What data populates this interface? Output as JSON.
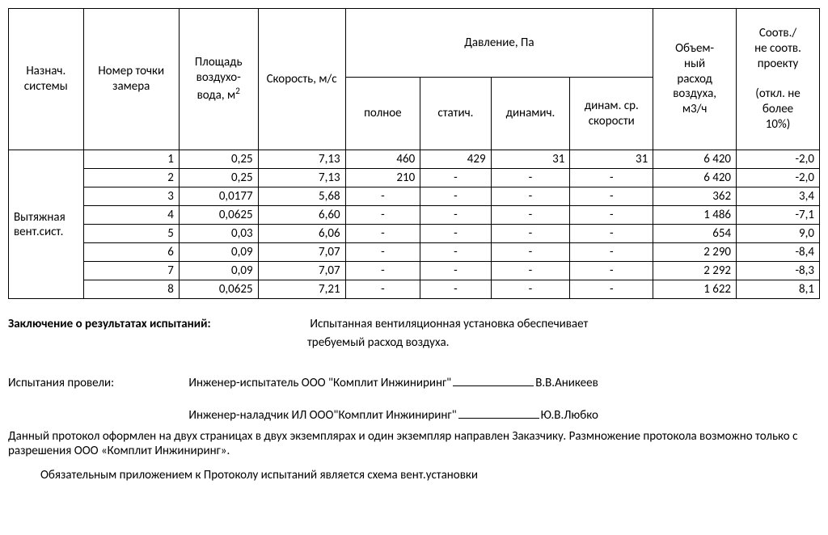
{
  "table": {
    "headers": {
      "system": "Назнач. системы",
      "point": "Номер точки замера",
      "area_l1": "Площадь",
      "area_l2": "воздухо-",
      "area_l3": "вода, м",
      "area_sup": "2",
      "velocity": "Скорость, м/с",
      "pressure_group": "Давление, Па",
      "pressure_full": "полное",
      "pressure_static": "статич.",
      "pressure_dynamic": "динамич.",
      "pressure_dyn_avg": "динам. ср. скорости",
      "flow_l1": "Объем-",
      "flow_l2": "ный",
      "flow_l3": "расход",
      "flow_l4": "воздуха,",
      "flow_l5": "м3/ч",
      "deviation_l1": "Соотв./",
      "deviation_l2": "не соотв.",
      "deviation_l3": "проекту",
      "deviation_l4": "(откл. не",
      "deviation_l5": "более",
      "deviation_l6": "10%)"
    },
    "system_label": "Вытяжная вент.сист.",
    "rows": [
      {
        "n": "1",
        "area": "0,25",
        "vel": "7,13",
        "p_full": "460",
        "p_stat": "429",
        "p_dyn": "31",
        "p_avg": "31",
        "flow": "6 420",
        "dev": "-2,0"
      },
      {
        "n": "2",
        "area": "0,25",
        "vel": "7,13",
        "p_full": "210",
        "p_stat": "-",
        "p_dyn": "-",
        "p_avg": "-",
        "flow": "6 420",
        "dev": "-2,0"
      },
      {
        "n": "3",
        "area": "0,0177",
        "vel": "5,68",
        "p_full": "-",
        "p_stat": "-",
        "p_dyn": "-",
        "p_avg": "-",
        "flow": "362",
        "dev": "3,4"
      },
      {
        "n": "4",
        "area": "0,0625",
        "vel": "6,60",
        "p_full": "-",
        "p_stat": "-",
        "p_dyn": "-",
        "p_avg": "-",
        "flow": "1 486",
        "dev": "-7,1"
      },
      {
        "n": "5",
        "area": "0,03",
        "vel": "6,06",
        "p_full": "-",
        "p_stat": "-",
        "p_dyn": "-",
        "p_avg": "-",
        "flow": "654",
        "dev": "9,0"
      },
      {
        "n": "6",
        "area": "0,09",
        "vel": "7,07",
        "p_full": "-",
        "p_stat": "-",
        "p_dyn": "-",
        "p_avg": "-",
        "flow": "2 290",
        "dev": "-8,4"
      },
      {
        "n": "7",
        "area": "0,09",
        "vel": "7,07",
        "p_full": "-",
        "p_stat": "-",
        "p_dyn": "-",
        "p_avg": "-",
        "flow": "2 292",
        "dev": "-8,3"
      },
      {
        "n": "8",
        "area": "0,0625",
        "vel": "7,21",
        "p_full": "-",
        "p_stat": "-",
        "p_dyn": "-",
        "p_avg": "-",
        "flow": "1 622",
        "dev": "8,1"
      }
    ],
    "col_widths": {
      "system": "90px",
      "point": "115px",
      "area": "95px",
      "vel": "105px",
      "p_full": "90px",
      "p_stat": "85px",
      "p_dyn": "95px",
      "p_avg": "100px",
      "flow": "100px",
      "dev": "100px"
    }
  },
  "conclusion": {
    "label": "Заключение о результатах испытаний:",
    "text1": "Испытанная вентиляционная установка обеспечивает",
    "text2": "требуемый расход воздуха."
  },
  "signatures": {
    "tests_label": "Испытания провели:",
    "line1_role": "Инженер-испытатель ООО \"Комплит Инжиниринг\"",
    "line1_name": "В.В.Аникеев",
    "line2_role": "Инженер-наладчик ИЛ ООО\"Комплит Инжиниринг\"",
    "line2_name": "Ю.В.Любко"
  },
  "notes": {
    "note1": "Данный протокол оформлен на двух страницах в двух экземплярах и один экземпляр направлен Заказчику. Размножение протокола возможно только с разрешения ООО «Комплит Инжиниринг».",
    "note2": "Обязательным приложением к Протоколу испытаний является схема вент.установки"
  }
}
